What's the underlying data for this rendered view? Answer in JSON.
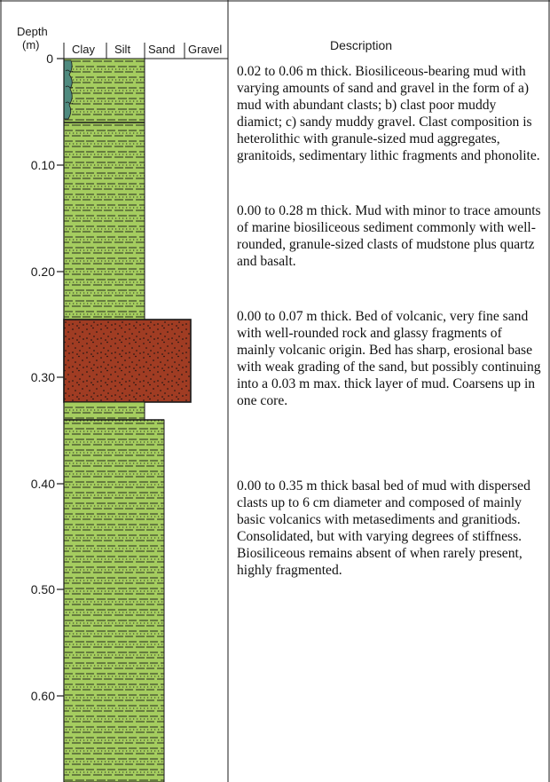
{
  "header": {
    "depth_label": "Depth",
    "depth_unit": "(m)",
    "columns": [
      "Clay",
      "Silt",
      "Sand",
      "Gravel"
    ],
    "description_title": "Description"
  },
  "depth_ticks": [
    "0",
    "0.10",
    "0.20",
    "0.30",
    "0.40",
    "0.50",
    "0.60"
  ],
  "colors": {
    "mud": "#a5cd5f",
    "volcanic_sand": "#a03c23",
    "top_unit_bluish": "#4f8a7f",
    "lines": "#1a1a1a"
  },
  "descriptions": [
    "0.02 to 0.06 m thick. Biosiliceous-bearing mud with varying amounts of sand and gravel in the form of a) mud with abundant clasts; b) clast poor muddy diamict; c) sandy muddy gravel. Clast composition is heterolithic with granule-sized mud aggregates, granitoids, sedimentary lithic fragments and phonolite.",
    "0.00 to 0.28 m thick. Mud with minor to trace amounts of marine biosiliceous sediment commonly with well-rounded, granule-sized clasts of mudstone plus quartz and basalt.",
    "0.00 to 0.07 m thick. Bed of volcanic, very fine sand with well-rounded rock and glassy fragments of mainly volcanic origin. Bed has sharp, erosional base with weak grading of the sand, but possibly continuing into a 0.03 m max. thick layer of mud. Coarsens up in one core.",
    "0.00 to 0.35 m thick basal bed of mud with dispersed clasts up to 6 cm diameter and composed of mainly basic volcanics with metasediments and granitiods. Consolidated, but with varying degrees of stiffness. Biosiliceous remains absent of when rarely present, highly fragmented."
  ]
}
